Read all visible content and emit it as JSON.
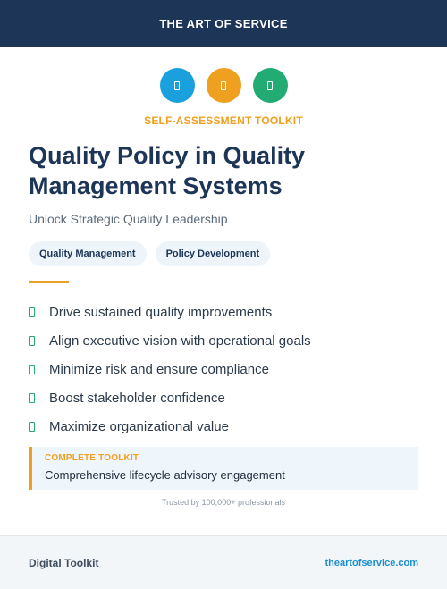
{
  "header": {
    "brand": "THE ART OF SERVICE"
  },
  "icons": [
    {
      "name": "document-icon",
      "color": "#1aa0dc"
    },
    {
      "name": "document-icon",
      "color": "#f0a020"
    },
    {
      "name": "document-icon",
      "color": "#22ab72"
    }
  ],
  "kicker": "SELF-ASSESSMENT TOOLKIT",
  "title": "Quality Policy in Quality Management Systems",
  "subtitle": "Unlock Strategic Quality Leadership",
  "tags": [
    "Quality Management",
    "Policy Development"
  ],
  "benefits": [
    "Drive sustained quality improvements",
    "Align executive vision with operational goals",
    "Minimize risk and ensure compliance",
    "Boost stakeholder confidence",
    "Maximize organizational value"
  ],
  "callout": {
    "label": "COMPLETE TOOLKIT",
    "description": "Comprehensive lifecycle advisory engagement"
  },
  "trust": "Trusted by 100,000+ professionals",
  "footer": {
    "left": "Digital Toolkit",
    "right": "theartofservice.com"
  },
  "colors": {
    "navy": "#1d3557",
    "orange": "#f0a020",
    "green": "#22ab72",
    "blue": "#1aa0dc"
  }
}
